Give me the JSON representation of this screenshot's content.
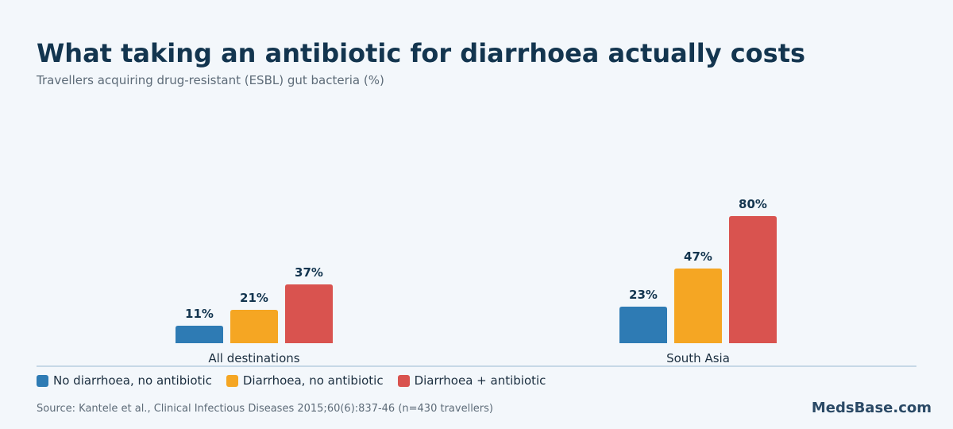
{
  "header": {
    "title": "What taking an antibiotic for diarrhoea actually costs",
    "subtitle": "Travellers acquiring drug-resistant (ESBL) gut bacteria (%)"
  },
  "chart_data": {
    "type": "bar",
    "categories": [
      "All destinations",
      "South Asia"
    ],
    "series": [
      {
        "name": "No diarrhoea, no antibiotic",
        "values": [
          11,
          23
        ],
        "color": "#2e7bb4"
      },
      {
        "name": "Diarrhoea, no antibiotic",
        "values": [
          21,
          47
        ],
        "color": "#f5a623"
      },
      {
        "name": "Diarrhoea + antibiotic",
        "values": [
          37,
          80
        ],
        "color": "#d9534f"
      }
    ],
    "value_suffix": "%",
    "ylim": [
      0,
      100
    ],
    "grid": false,
    "legend_position": "bottom-left"
  },
  "legend": {
    "items": [
      {
        "label": "No diarrhoea, no antibiotic",
        "color": "#2e7bb4"
      },
      {
        "label": "Diarrhoea, no antibiotic",
        "color": "#f5a623"
      },
      {
        "label": "Diarrhoea + antibiotic",
        "color": "#d9534f"
      }
    ]
  },
  "footer": {
    "source": "Source: Kantele et al., Clinical Infectious Diseases 2015;60(6):837-46 (n=430 travellers)",
    "brand": "MedsBase.com"
  }
}
